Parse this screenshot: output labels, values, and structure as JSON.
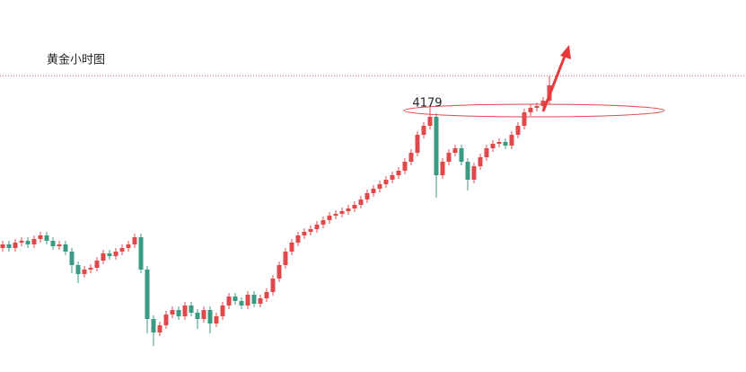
{
  "chart_data": {
    "type": "candlestick",
    "title": "黄金小时图",
    "annotation": "4179",
    "up_color": "#e0494b",
    "down_color": "#3b9a83",
    "open": [
      4020,
      4024,
      4020,
      4026,
      4028,
      4024,
      4030,
      4034,
      4028,
      4022,
      4024,
      4016,
      4001,
      3991,
      3996,
      3998,
      4006,
      4014,
      4011,
      4016,
      4020,
      4024,
      4032,
      3996,
      3941,
      3926,
      3934,
      3946,
      3951,
      3944,
      3956,
      3948,
      3941,
      3951,
      3936,
      3944,
      3956,
      3966,
      3961,
      3956,
      3968,
      3958,
      3964,
      3971,
      3986,
      4001,
      4016,
      4026,
      4034,
      4038,
      4041,
      4046,
      4051,
      4056,
      4058,
      4061,
      4064,
      4068,
      4074,
      4081,
      4086,
      4091,
      4096,
      4101,
      4106,
      4116,
      4126,
      4146,
      4156,
      4166,
      4101,
      4116,
      4126,
      4131,
      4116,
      4096,
      4111,
      4121,
      4131,
      4136,
      4138,
      4134,
      4146,
      4156,
      4171,
      4176,
      4178,
      4184
    ],
    "high": [
      4028,
      4028,
      4030,
      4032,
      4032,
      4034,
      4038,
      4038,
      4032,
      4028,
      4028,
      4020,
      4005,
      4000,
      4002,
      4010,
      4018,
      4018,
      4020,
      4024,
      4028,
      4036,
      4036,
      4000,
      3945,
      3938,
      3950,
      3955,
      3955,
      3960,
      3960,
      3952,
      3955,
      3955,
      3948,
      3960,
      3970,
      3970,
      3965,
      3972,
      3972,
      3968,
      3975,
      3990,
      4005,
      4020,
      4030,
      4038,
      4042,
      4045,
      4050,
      4055,
      4060,
      4062,
      4065,
      4068,
      4072,
      4078,
      4085,
      4090,
      4095,
      4100,
      4105,
      4110,
      4120,
      4130,
      4150,
      4160,
      4179,
      4170,
      4120,
      4130,
      4135,
      4135,
      4120,
      4115,
      4125,
      4135,
      4140,
      4142,
      4142,
      4150,
      4160,
      4175,
      4180,
      4182,
      4188,
      4211
    ],
    "low": [
      4016,
      4016,
      4016,
      4022,
      4020,
      4020,
      4026,
      4024,
      4018,
      4018,
      4012,
      3992,
      3981,
      3987,
      3992,
      3994,
      4002,
      4007,
      4007,
      4012,
      4016,
      4020,
      3992,
      3925,
      3911,
      3922,
      3930,
      3942,
      3940,
      3940,
      3944,
      3930,
      3937,
      3925,
      3932,
      3940,
      3952,
      3957,
      3952,
      3952,
      3954,
      3954,
      3960,
      3967,
      3982,
      3997,
      4012,
      4022,
      4030,
      4034,
      4037,
      4042,
      4047,
      4052,
      4054,
      4057,
      4060,
      4064,
      4070,
      4077,
      4082,
      4087,
      4092,
      4097,
      4102,
      4112,
      4122,
      4142,
      4152,
      4076,
      4097,
      4112,
      4122,
      4112,
      4084,
      4092,
      4107,
      4117,
      4127,
      4132,
      4130,
      4130,
      4142,
      4152,
      4167,
      4172,
      4174,
      4180
    ],
    "close": [
      4024,
      4020,
      4026,
      4028,
      4024,
      4030,
      4034,
      4028,
      4022,
      4024,
      4016,
      4001,
      3991,
      3996,
      3998,
      4006,
      4014,
      4011,
      4016,
      4020,
      4024,
      4032,
      3996,
      3941,
      3926,
      3934,
      3946,
      3951,
      3944,
      3956,
      3948,
      3941,
      3951,
      3936,
      3944,
      3956,
      3966,
      3961,
      3956,
      3968,
      3958,
      3964,
      3971,
      3986,
      4001,
      4016,
      4026,
      4034,
      4038,
      4041,
      4046,
      4051,
      4056,
      4058,
      4061,
      4064,
      4068,
      4074,
      4081,
      4086,
      4091,
      4096,
      4101,
      4106,
      4116,
      4126,
      4146,
      4156,
      4166,
      4101,
      4116,
      4126,
      4131,
      4116,
      4096,
      4111,
      4121,
      4131,
      4136,
      4138,
      4134,
      4146,
      4156,
      4171,
      4176,
      4178,
      4184,
      4201
    ]
  }
}
